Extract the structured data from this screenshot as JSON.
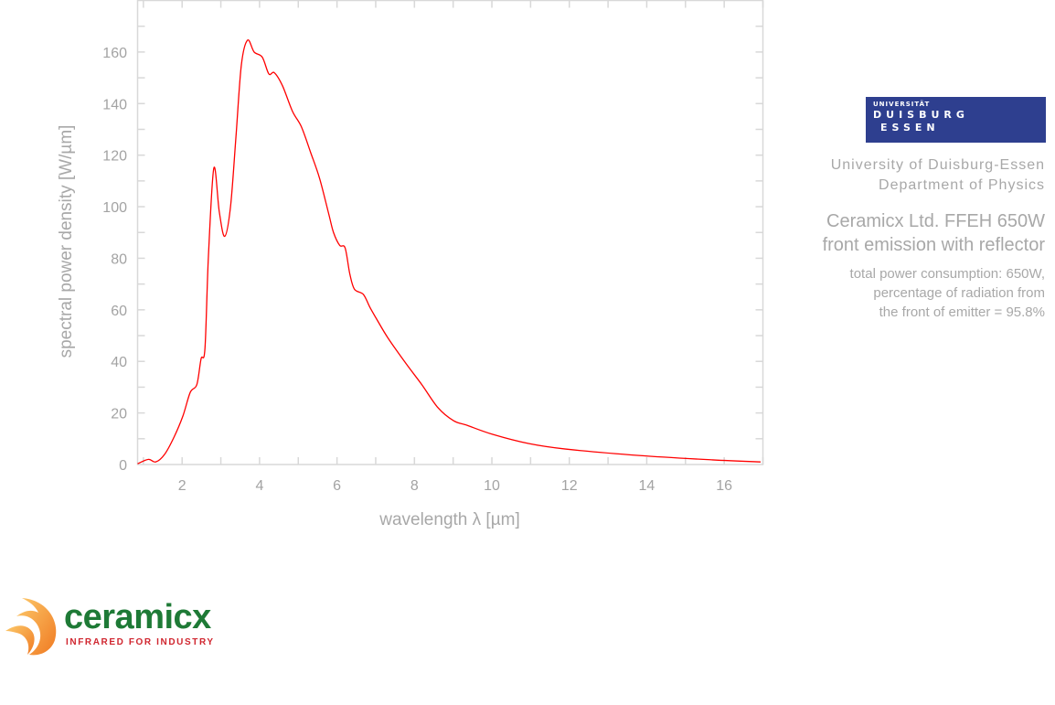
{
  "chart_data": {
    "type": "line",
    "title": "",
    "xlabel": "wavelength λ [µm]",
    "ylabel": "spectral power density [W/µm]",
    "xlim": [
      0.85,
      17
    ],
    "ylim": [
      0,
      180
    ],
    "xticks": [
      2,
      4,
      6,
      8,
      10,
      12,
      14,
      16
    ],
    "yticks": [
      0,
      20,
      40,
      60,
      80,
      100,
      120,
      140,
      160
    ],
    "grid": false,
    "line_color": "#ff0000",
    "series": [
      {
        "x": [
          0.85,
          1.13,
          1.32,
          1.55,
          1.79,
          2.02,
          2.21,
          2.38,
          2.49,
          2.59,
          2.68,
          2.82,
          2.96,
          3.1,
          3.25,
          3.39,
          3.53,
          3.69,
          3.86,
          4.07,
          4.24,
          4.38,
          4.59,
          4.85,
          5.08,
          5.32,
          5.55,
          5.79,
          5.91,
          6.07,
          6.21,
          6.33,
          6.45,
          6.68,
          6.85,
          7.04,
          7.32,
          7.79,
          8.19,
          8.61,
          9.01,
          9.36,
          10.02,
          10.96,
          11.9,
          13.8,
          15.7,
          16.94
        ],
        "y": [
          0.3,
          2,
          1,
          4,
          10.6,
          18.8,
          28,
          31,
          41,
          45,
          81,
          115,
          98,
          88.5,
          100,
          127,
          155,
          164.6,
          160,
          158,
          151.5,
          152,
          147,
          137,
          131,
          121,
          111,
          97,
          90,
          85,
          84,
          74,
          68,
          66,
          61,
          56,
          49,
          39,
          31,
          22,
          17,
          15.2,
          11.7,
          8.1,
          6,
          3.5,
          1.8,
          1
        ]
      }
    ]
  },
  "sidebar": {
    "university_logo": {
      "line1": "UNIVERSITÄT",
      "line2": "DUISBURG",
      "line3": "ESSEN",
      "color": "#2e3f8f"
    },
    "university": [
      "University of Duisburg-Essen",
      "Department of Physics"
    ],
    "product": [
      "Ceramicx Ltd. FFEH 650W",
      "front emission with reflector"
    ],
    "notes": [
      "total power consumption: 650W,",
      "percentage of radiation from",
      "the front of emitter = 95.8%"
    ]
  },
  "brand": {
    "name": "ceramicx",
    "tagline": "INFRARED FOR INDUSTRY",
    "green": "#1e7a36",
    "red": "#d0262f",
    "orange": "#f39a2b"
  }
}
